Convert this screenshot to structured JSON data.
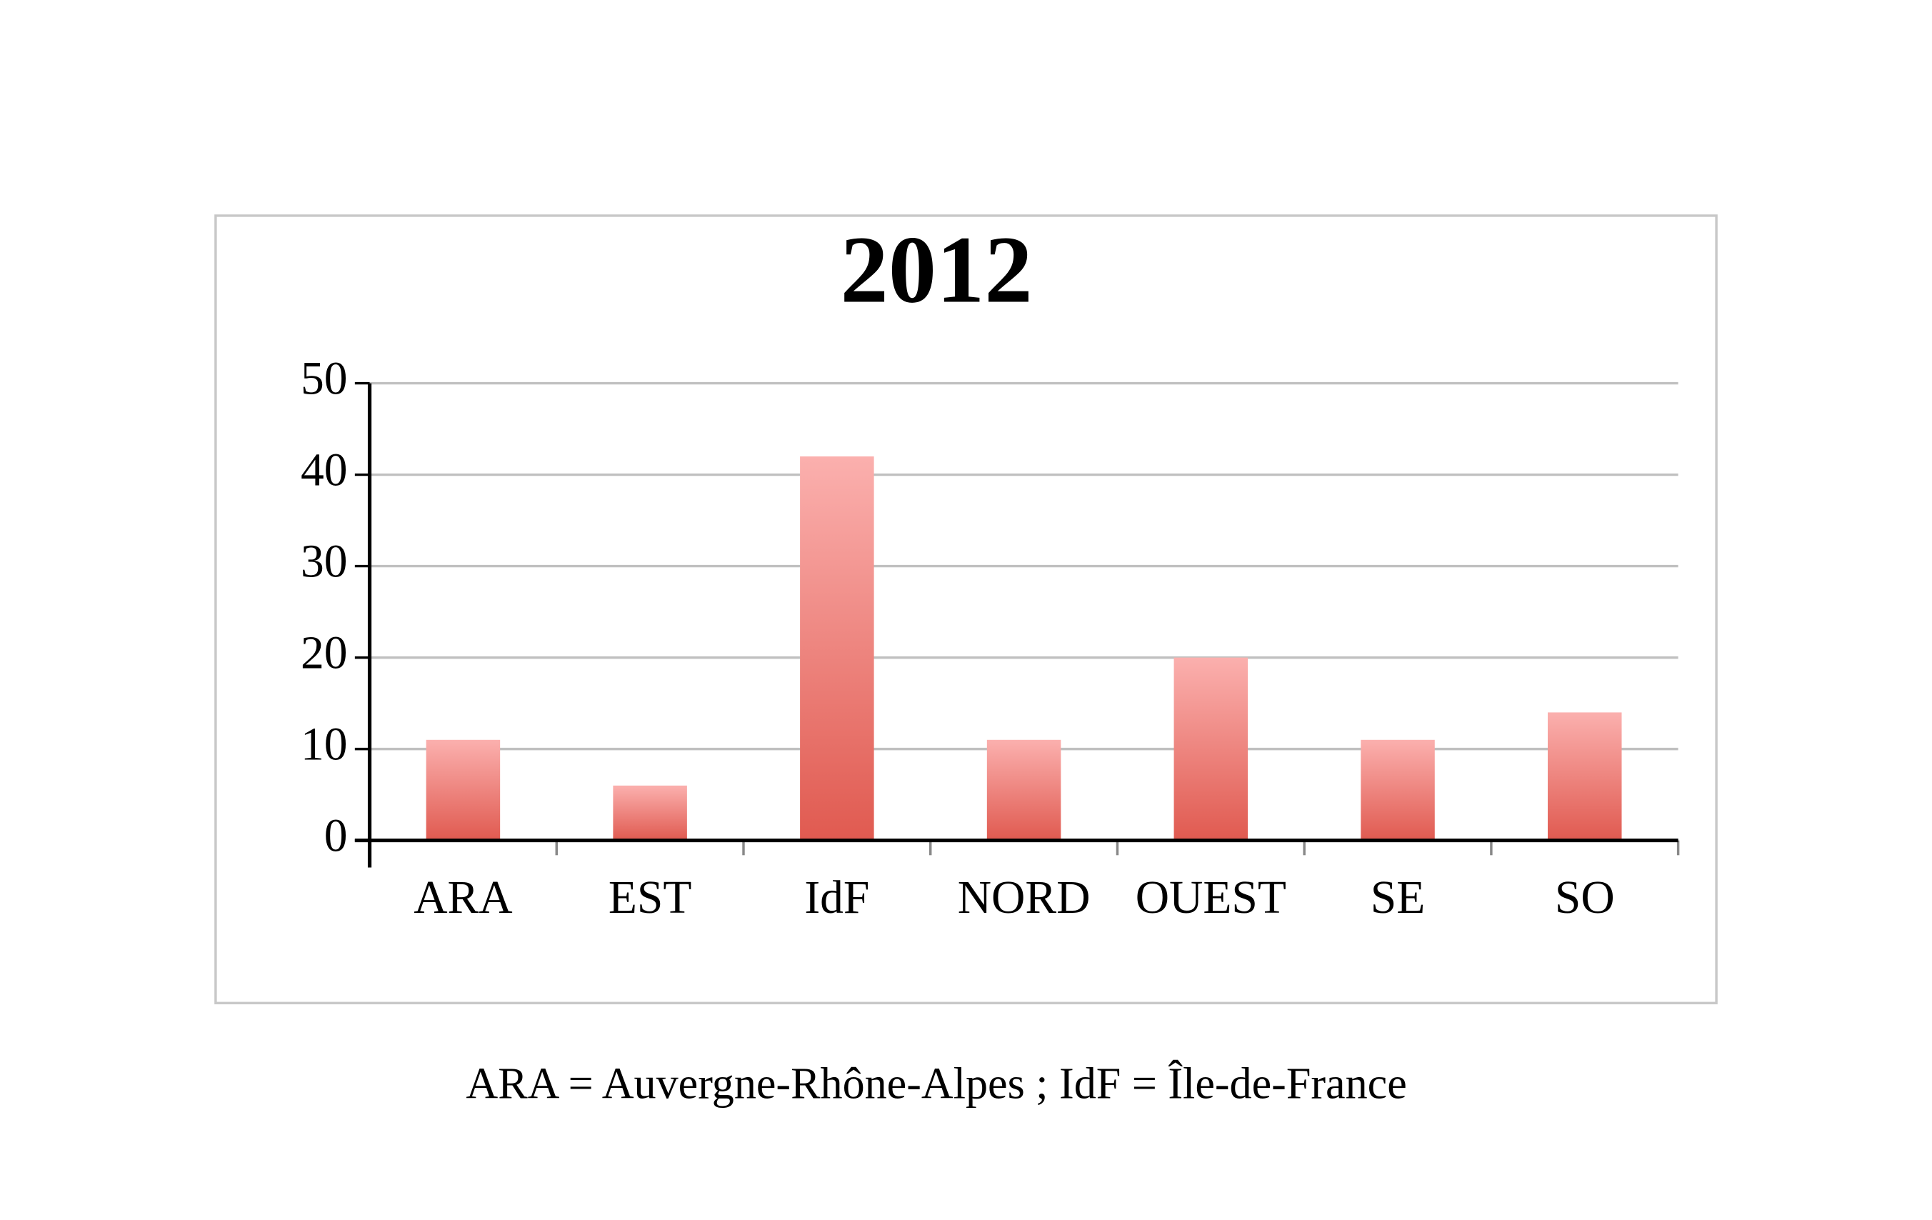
{
  "chart_data": {
    "type": "bar",
    "title": "2012",
    "categories": [
      "ARA",
      "EST",
      "IdF",
      "NORD",
      "OUEST",
      "SE",
      "SO"
    ],
    "values": [
      11,
      6,
      42,
      11,
      20,
      11,
      14
    ],
    "color": "#e05a50",
    "ylim": [
      0,
      50
    ],
    "yticks": [
      0,
      10,
      20,
      30,
      40,
      50
    ],
    "grid": true,
    "footnote": "ARA = Auvergne-Rhône-Alpes ; IdF = Île-de-France"
  }
}
